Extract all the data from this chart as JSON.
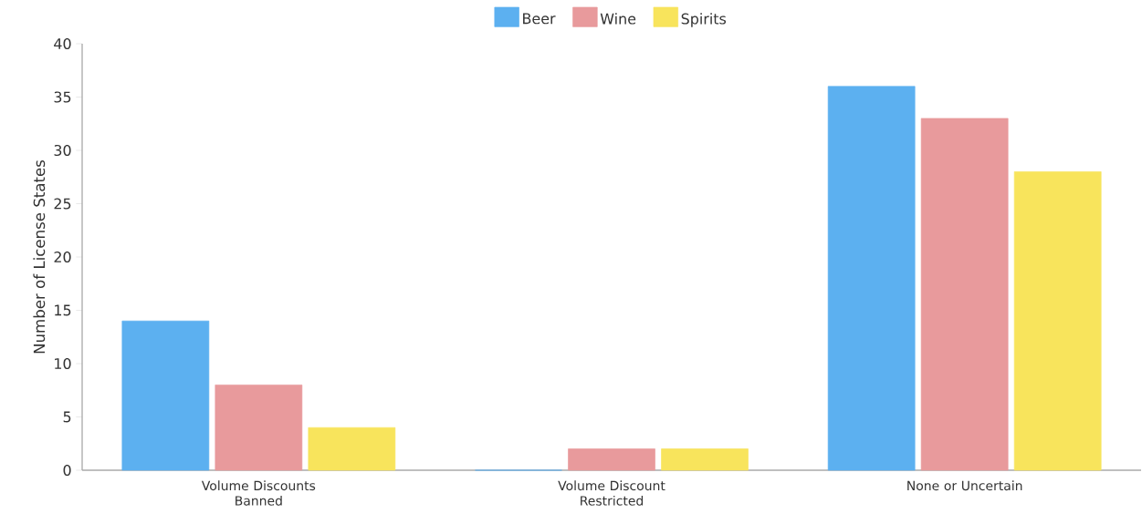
{
  "chart_data": {
    "type": "bar",
    "ylabel": "Number of License States",
    "categories": [
      "Volume Discounts Banned",
      "Volume Discount Restricted",
      "None or Uncertain"
    ],
    "series": [
      {
        "name": "Beer",
        "color": "#5cb0f0",
        "values": [
          14,
          0,
          36
        ]
      },
      {
        "name": "Wine",
        "color": "#e89a9c",
        "values": [
          8,
          2,
          33
        ]
      },
      {
        "name": "Spirits",
        "color": "#f8e45c",
        "values": [
          4,
          2,
          28
        ]
      }
    ],
    "ylim": [
      0,
      40
    ],
    "yticks": [
      0,
      5,
      10,
      15,
      20,
      25,
      30,
      35,
      40
    ],
    "grid": false,
    "legend": "top"
  }
}
